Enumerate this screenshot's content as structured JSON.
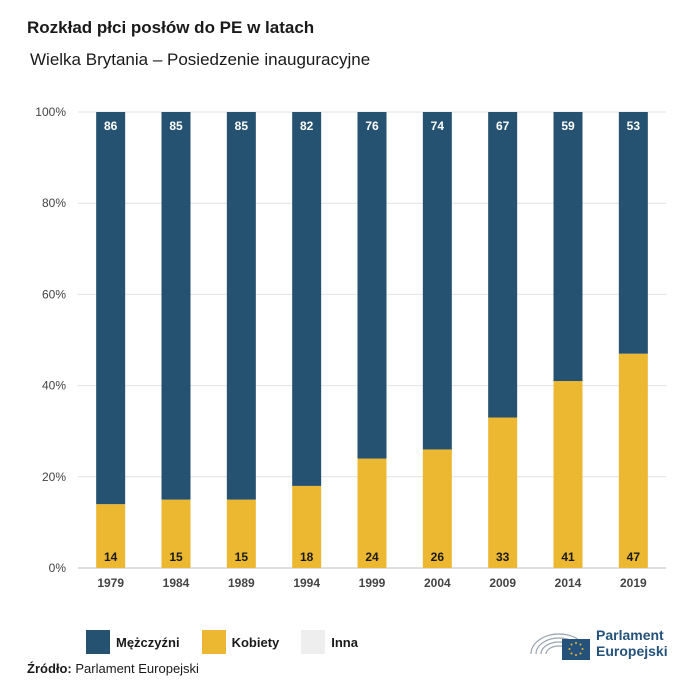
{
  "title": "Rozkład płci posłów do PE w latach",
  "subtitle": "Wielka Brytania – Posiedzenie inauguracyjne",
  "source_label": "Źródło:",
  "source_text": "Parlament Europejski",
  "logo_line1": "Parlament",
  "logo_line2": "Europejski",
  "colors": {
    "men": "#265272",
    "women": "#ecb731",
    "other": "#eeeeee",
    "grid": "#e2e2e2"
  },
  "chart_data": {
    "type": "bar",
    "stacked": true,
    "title": "Rozkład płci posłów do PE w latach",
    "subtitle": "Wielka Brytania – Posiedzenie inauguracyjne",
    "categories": [
      "1979",
      "1984",
      "1989",
      "1994",
      "1999",
      "2004",
      "2009",
      "2014",
      "2019"
    ],
    "series": [
      {
        "name": "Kobiety",
        "values": [
          14,
          15,
          15,
          18,
          24,
          26,
          33,
          41,
          47
        ]
      },
      {
        "name": "Mężczyźni",
        "values": [
          86,
          85,
          85,
          82,
          76,
          74,
          67,
          59,
          53
        ]
      },
      {
        "name": "Inna",
        "values": [
          0,
          0,
          0,
          0,
          0,
          0,
          0,
          0,
          0
        ]
      }
    ],
    "y_ticks": [
      "0%",
      "20%",
      "40%",
      "60%",
      "80%",
      "100%"
    ],
    "ylim": [
      0,
      100
    ],
    "grid": true,
    "legend_position": "bottom-left"
  }
}
